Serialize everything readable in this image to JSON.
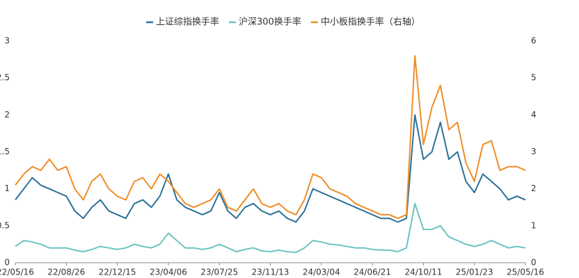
{
  "chart_data": {
    "type": "line",
    "categories": [
      "22/05/16",
      null,
      null,
      null,
      null,
      null,
      "22/08/26",
      null,
      null,
      null,
      null,
      null,
      "22/12/15",
      null,
      null,
      null,
      null,
      null,
      "23/04/06",
      null,
      null,
      null,
      null,
      null,
      "23/07/25",
      null,
      null,
      null,
      null,
      null,
      "23/11/13",
      null,
      null,
      null,
      null,
      null,
      "24/03/04",
      null,
      null,
      null,
      null,
      null,
      "24/06/21",
      null,
      null,
      null,
      null,
      null,
      "24/10/11",
      null,
      null,
      null,
      null,
      null,
      "25/01/23",
      null,
      null,
      null,
      null,
      null,
      "25/05/16"
    ],
    "series": [
      {
        "name": "上证综指换手率",
        "color": "#2a6f97",
        "axis": "y",
        "values": [
          0.85,
          1.0,
          1.15,
          1.05,
          1.0,
          0.95,
          0.9,
          0.7,
          0.6,
          0.75,
          0.85,
          0.7,
          0.65,
          0.6,
          0.8,
          0.85,
          0.75,
          0.9,
          1.2,
          0.85,
          0.75,
          0.7,
          0.65,
          0.7,
          0.95,
          0.7,
          0.6,
          0.75,
          0.8,
          0.7,
          0.65,
          0.7,
          0.6,
          0.55,
          0.7,
          1.0,
          0.95,
          0.9,
          0.85,
          0.8,
          0.75,
          0.7,
          0.65,
          0.6,
          0.6,
          0.55,
          0.6,
          2.0,
          1.4,
          1.5,
          1.9,
          1.4,
          1.5,
          1.1,
          0.95,
          1.2,
          1.1,
          1.0,
          0.85,
          0.9,
          0.85
        ]
      },
      {
        "name": "沪深300换手率",
        "color": "#6cc3c1",
        "axis": "y",
        "values": [
          0.22,
          0.3,
          0.28,
          0.25,
          0.2,
          0.2,
          0.2,
          0.17,
          0.15,
          0.18,
          0.22,
          0.2,
          0.18,
          0.2,
          0.25,
          0.22,
          0.2,
          0.25,
          0.4,
          0.3,
          0.2,
          0.2,
          0.18,
          0.2,
          0.25,
          0.2,
          0.15,
          0.18,
          0.2,
          0.16,
          0.15,
          0.17,
          0.15,
          0.14,
          0.2,
          0.3,
          0.28,
          0.25,
          0.24,
          0.22,
          0.2,
          0.2,
          0.18,
          0.17,
          0.17,
          0.15,
          0.2,
          0.8,
          0.45,
          0.45,
          0.5,
          0.35,
          0.3,
          0.25,
          0.22,
          0.25,
          0.3,
          0.25,
          0.2,
          0.22,
          0.2
        ]
      },
      {
        "name": "中小板指换手率（右轴）",
        "color": "#ef8c27",
        "axis": "y2",
        "values": [
          2.1,
          2.4,
          2.6,
          2.5,
          2.8,
          2.5,
          2.6,
          2.0,
          1.7,
          2.2,
          2.4,
          2.0,
          1.8,
          1.7,
          2.2,
          2.3,
          2.0,
          2.4,
          2.2,
          1.9,
          1.6,
          1.5,
          1.6,
          1.7,
          2.0,
          1.5,
          1.4,
          1.7,
          2.0,
          1.6,
          1.5,
          1.6,
          1.4,
          1.3,
          1.7,
          2.4,
          2.3,
          2.0,
          1.9,
          1.8,
          1.6,
          1.5,
          1.4,
          1.3,
          1.3,
          1.2,
          1.3,
          5.6,
          3.2,
          4.2,
          4.8,
          3.6,
          3.8,
          2.7,
          2.2,
          3.2,
          3.3,
          2.5,
          2.6,
          2.6,
          2.5
        ]
      }
    ],
    "ylim": [
      0,
      3
    ],
    "yticks": [
      0,
      0.5,
      1,
      1.5,
      2,
      2.5,
      3
    ],
    "y2lim": [
      0,
      6
    ],
    "y2ticks": [
      0,
      1,
      2,
      3,
      4,
      5,
      6
    ],
    "legend": "top"
  }
}
